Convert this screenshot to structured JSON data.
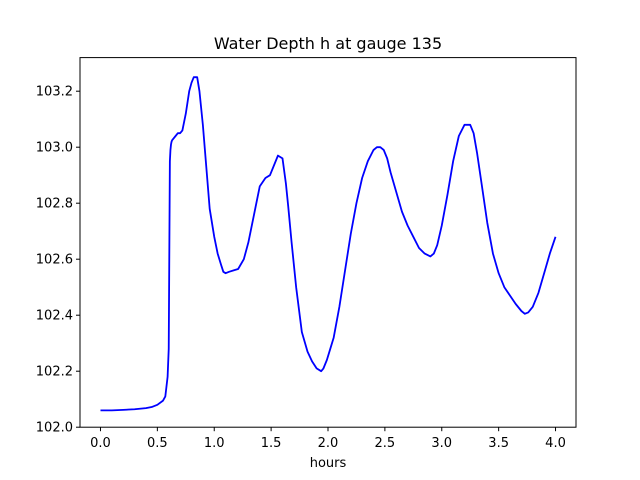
{
  "chart_data": {
    "type": "line",
    "title": "Water Depth h at gauge 135",
    "xlabel": "hours",
    "ylabel": "",
    "xlim": [
      -0.18,
      4.18
    ],
    "ylim": [
      102.0,
      103.32
    ],
    "xticks": [
      0.0,
      0.5,
      1.0,
      1.5,
      2.0,
      2.5,
      3.0,
      3.5,
      4.0
    ],
    "xtick_labels": [
      "0.0",
      "0.5",
      "1.0",
      "1.5",
      "2.0",
      "2.5",
      "3.0",
      "3.5",
      "4.0"
    ],
    "yticks": [
      102.0,
      102.2,
      102.4,
      102.6,
      102.8,
      103.0,
      103.2
    ],
    "ytick_labels": [
      "102.0",
      "102.2",
      "102.4",
      "102.6",
      "102.8",
      "103.0",
      "103.2"
    ],
    "grid": false,
    "series": [
      {
        "color": "#0000ff",
        "x": [
          0.0,
          0.1,
          0.2,
          0.3,
          0.4,
          0.45,
          0.5,
          0.55,
          0.57,
          0.59,
          0.6,
          0.61,
          0.615,
          0.62,
          0.625,
          0.63,
          0.64,
          0.66,
          0.68,
          0.7,
          0.72,
          0.75,
          0.78,
          0.8,
          0.82,
          0.85,
          0.87,
          0.9,
          0.93,
          0.96,
          1.0,
          1.03,
          1.06,
          1.08,
          1.1,
          1.13,
          1.17,
          1.21,
          1.26,
          1.3,
          1.35,
          1.4,
          1.45,
          1.49,
          1.53,
          1.56,
          1.6,
          1.63,
          1.65,
          1.68,
          1.72,
          1.77,
          1.82,
          1.86,
          1.9,
          1.94,
          1.96,
          1.99,
          2.02,
          2.05,
          2.1,
          2.15,
          2.2,
          2.25,
          2.3,
          2.35,
          2.4,
          2.43,
          2.46,
          2.49,
          2.52,
          2.55,
          2.6,
          2.65,
          2.7,
          2.75,
          2.8,
          2.85,
          2.9,
          2.93,
          2.96,
          3.0,
          3.05,
          3.1,
          3.15,
          3.2,
          3.25,
          3.28,
          3.31,
          3.35,
          3.4,
          3.45,
          3.5,
          3.55,
          3.6,
          3.65,
          3.7,
          3.73,
          3.76,
          3.8,
          3.85,
          3.9,
          3.95,
          4.0
        ],
        "y": [
          102.06,
          102.06,
          102.062,
          102.064,
          102.068,
          102.072,
          102.08,
          102.095,
          102.11,
          102.18,
          102.28,
          102.95,
          102.99,
          103.01,
          103.02,
          103.025,
          103.03,
          103.04,
          103.05,
          103.05,
          103.06,
          103.12,
          103.2,
          103.23,
          103.25,
          103.25,
          103.2,
          103.08,
          102.93,
          102.78,
          102.68,
          102.62,
          102.58,
          102.555,
          102.55,
          102.555,
          102.56,
          102.565,
          102.6,
          102.66,
          102.76,
          102.86,
          102.89,
          102.9,
          102.94,
          102.97,
          102.96,
          102.87,
          102.79,
          102.66,
          102.5,
          102.34,
          102.27,
          102.235,
          102.21,
          102.2,
          102.21,
          102.24,
          102.28,
          102.32,
          102.43,
          102.56,
          102.69,
          102.8,
          102.89,
          102.95,
          102.99,
          103.0,
          103.0,
          102.99,
          102.96,
          102.91,
          102.84,
          102.77,
          102.72,
          102.68,
          102.64,
          102.62,
          102.61,
          102.62,
          102.65,
          102.72,
          102.83,
          102.95,
          103.04,
          103.08,
          103.08,
          103.05,
          102.98,
          102.87,
          102.73,
          102.62,
          102.55,
          102.5,
          102.47,
          102.44,
          102.415,
          102.405,
          102.41,
          102.43,
          102.48,
          102.55,
          102.62,
          102.68
        ]
      }
    ]
  },
  "style": {
    "line_color": "#0000ff",
    "axis_color": "#000000",
    "background": "#ffffff"
  }
}
